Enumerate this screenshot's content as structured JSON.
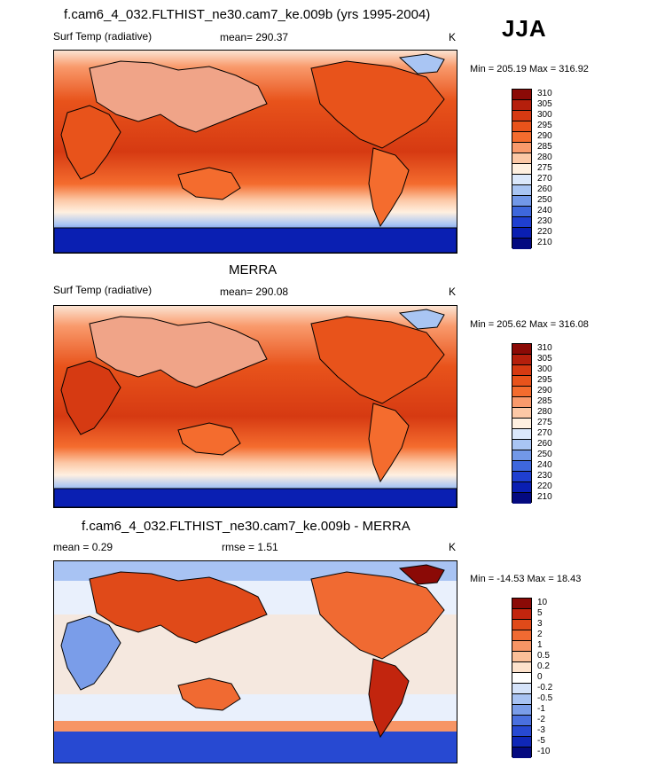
{
  "season": "JJA",
  "panels": [
    {
      "title": "f.cam6_4_032.FLTHIST_ne30.cam7_ke.009b (yrs 1995-2004)",
      "variable": "Surf Temp (radiative)",
      "stat1": "mean= 290.37",
      "stat2": "",
      "units": "K",
      "minmax": "Min = 205.19 Max = 316.92",
      "colorbar": [
        "310",
        "305",
        "300",
        "295",
        "290",
        "285",
        "280",
        "275",
        "270",
        "260",
        "250",
        "240",
        "230",
        "220",
        "210"
      ]
    },
    {
      "title": "MERRA",
      "variable": "Surf Temp (radiative)",
      "stat1": "mean= 290.08",
      "stat2": "",
      "units": "K",
      "minmax": "Min = 205.62 Max = 316.08",
      "colorbar": [
        "310",
        "305",
        "300",
        "295",
        "290",
        "285",
        "280",
        "275",
        "270",
        "260",
        "250",
        "240",
        "230",
        "220",
        "210"
      ]
    },
    {
      "title": "f.cam6_4_032.FLTHIST_ne30.cam7_ke.009b - MERRA",
      "variable": "",
      "stat1": "mean =   0.29",
      "stat2": "rmse =   1.51",
      "units": "K",
      "minmax": "Min = -14.53 Max =  18.43",
      "colorbar": [
        "10",
        "5",
        "3",
        "2",
        "1",
        "0.5",
        "0.2",
        "0",
        "-0.2",
        "-0.5",
        "-1",
        "-2",
        "-3",
        "-5",
        "-10"
      ]
    }
  ],
  "colors": {
    "temp_scale": [
      "#8b0a06",
      "#b51f0c",
      "#d63a12",
      "#e8531b",
      "#f46c2e",
      "#f99a6c",
      "#fcc8a6",
      "#fff0e0",
      "#dbe8fb",
      "#a9c5f3",
      "#7298e8",
      "#3e67dc",
      "#1f3fd0",
      "#0a1fb2",
      "#040a80"
    ],
    "diff_scale": [
      "#8b0a06",
      "#c2250e",
      "#e04a19",
      "#f06a32",
      "#f79565",
      "#fbbf98",
      "#fde2cc",
      "#ffffff",
      "#d5e3fa",
      "#a8c3f3",
      "#7a9de9",
      "#4a70df",
      "#2749d2",
      "#0f27b8",
      "#040a80"
    ],
    "land": "#000000"
  }
}
